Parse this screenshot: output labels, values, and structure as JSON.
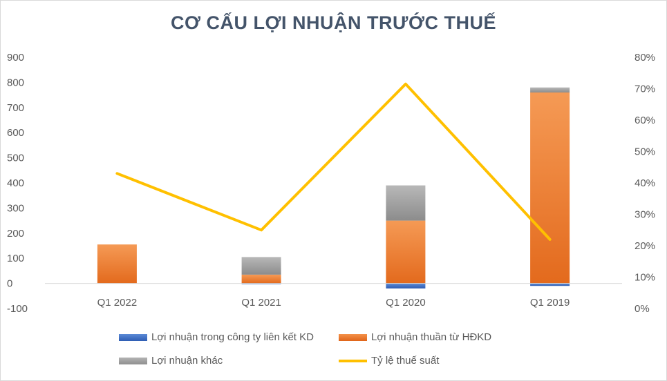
{
  "chart_data": {
    "type": "bar",
    "subtype": "stacked-bar-with-line-secondary-axis",
    "title": "CƠ CẤU LỢI NHUẬN TRƯỚC THUẾ",
    "categories": [
      "Q1 2022",
      "Q1 2021",
      "Q1 2020",
      "Q1 2019"
    ],
    "series": [
      {
        "name": "Lợi nhuận trong công ty liên kết KD",
        "kind": "bar",
        "axis": "left",
        "color": "#4472c4",
        "values": [
          0,
          -3,
          -20,
          -10
        ]
      },
      {
        "name": "Lợi nhuận thuần từ HĐKD",
        "kind": "bar",
        "axis": "left",
        "color": "#ed7d31",
        "values": [
          155,
          35,
          250,
          760
        ]
      },
      {
        "name": "Lợi nhuận khác",
        "kind": "bar",
        "axis": "left",
        "color": "#a5a5a5",
        "values": [
          0,
          70,
          140,
          20
        ]
      },
      {
        "name": "Tỷ lệ thuế suất",
        "kind": "line",
        "axis": "right",
        "color": "#ffc000",
        "values": [
          0.43,
          0.25,
          0.715,
          0.22
        ]
      }
    ],
    "y_left": {
      "min": -100,
      "max": 900,
      "step": 100,
      "ticks": [
        "-100",
        "0",
        "100",
        "200",
        "300",
        "400",
        "500",
        "600",
        "700",
        "800",
        "900"
      ]
    },
    "y_right": {
      "min": 0,
      "max": 0.8,
      "step": 0.1,
      "ticks": [
        "0%",
        "10%",
        "20%",
        "30%",
        "40%",
        "50%",
        "60%",
        "70%",
        "80%"
      ]
    },
    "grid": false,
    "legend_position": "bottom"
  }
}
